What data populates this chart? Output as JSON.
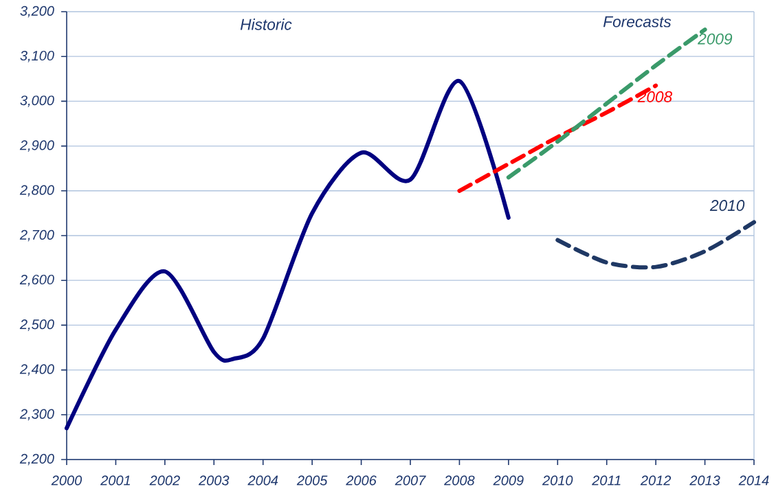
{
  "chart_data": {
    "type": "line",
    "x": [
      2000,
      2001,
      2002,
      2003,
      2003.4,
      2004,
      2005,
      2006,
      2007,
      2008,
      2009
    ],
    "series": [
      {
        "color": "#000080",
        "line_style": "solid",
        "values": [
          2270,
          2490,
          2620,
          2440,
          2425,
          2470,
          2750,
          2885,
          2825,
          3045,
          2740
        ]
      },
      {
        "name": "2008",
        "color": "#ff0000",
        "line_style": "dashed",
        "x": [
          2008,
          2009,
          2010,
          2011,
          2012
        ],
        "values": [
          2800,
          2860,
          2920,
          2975,
          3035
        ]
      },
      {
        "name": "2009",
        "color": "#3a9a6a",
        "line_style": "dashed",
        "x": [
          2009,
          2010,
          2011,
          2012,
          2013
        ],
        "values": [
          2830,
          2910,
          2995,
          3080,
          3160
        ]
      },
      {
        "name": "2010",
        "color": "#1f3864",
        "line_style": "dashed",
        "x": [
          2010,
          2011,
          2012,
          2013,
          2014
        ],
        "values": [
          2690,
          2640,
          2630,
          2665,
          2730
        ]
      }
    ],
    "annotations": [
      "Historic",
      "Forecasts"
    ],
    "xlim": [
      2000,
      2014
    ],
    "xticks": [
      2000,
      2001,
      2002,
      2003,
      2004,
      2005,
      2006,
      2007,
      2008,
      2009,
      2010,
      2011,
      2012,
      2013,
      2014
    ],
    "ylim": [
      2200,
      3200
    ],
    "yticks": [
      {
        "value": 2200,
        "label": "2,200"
      },
      {
        "value": 2300,
        "label": "2,300"
      },
      {
        "value": 2400,
        "label": "2,400"
      },
      {
        "value": 2500,
        "label": "2,500"
      },
      {
        "value": 2600,
        "label": "2,600"
      },
      {
        "value": 2700,
        "label": "2,700"
      },
      {
        "value": 2800,
        "label": "2,800"
      },
      {
        "value": 2900,
        "label": "2,900"
      },
      {
        "value": 3000,
        "label": "3,000"
      },
      {
        "value": 3100,
        "label": "3,100"
      },
      {
        "value": 3200,
        "label": "3,200"
      }
    ],
    "grid": "y",
    "marker": "none"
  }
}
